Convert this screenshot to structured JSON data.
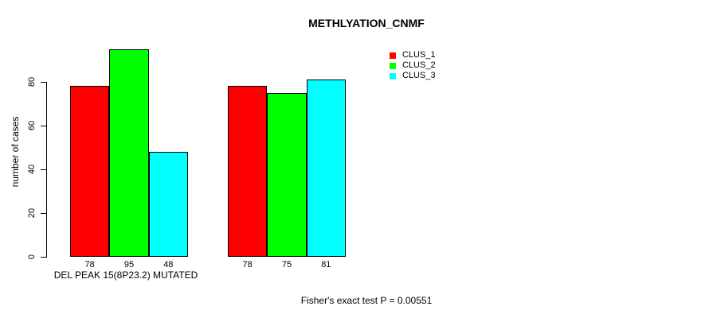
{
  "chart_data": {
    "type": "bar",
    "title": "METHLYATION_CNMF",
    "ylabel": "number of cases",
    "xlabel": "DEL PEAK 15(8P23.2) MUTATED",
    "annotation": "Fisher's exact test P = 0.00551",
    "categories": [
      "DEL PEAK 15(8P23.2) MUTATED",
      ""
    ],
    "series": [
      {
        "name": "CLUS_1",
        "color": "#FF0000",
        "values": [
          78,
          78
        ]
      },
      {
        "name": "CLUS_2",
        "color": "#00FF00",
        "values": [
          95,
          75
        ]
      },
      {
        "name": "CLUS_3",
        "color": "#00FFFF",
        "values": [
          48,
          81
        ]
      }
    ],
    "bar_value_labels": [
      [
        78,
        95,
        48
      ],
      [
        78,
        75,
        81
      ]
    ],
    "y_ticks": [
      0,
      20,
      40,
      60,
      80
    ],
    "ylim": [
      0,
      95
    ],
    "grid": false,
    "legend_position": "top-right",
    "background": "#FFFFFF",
    "bar_border_color": "#000000"
  }
}
